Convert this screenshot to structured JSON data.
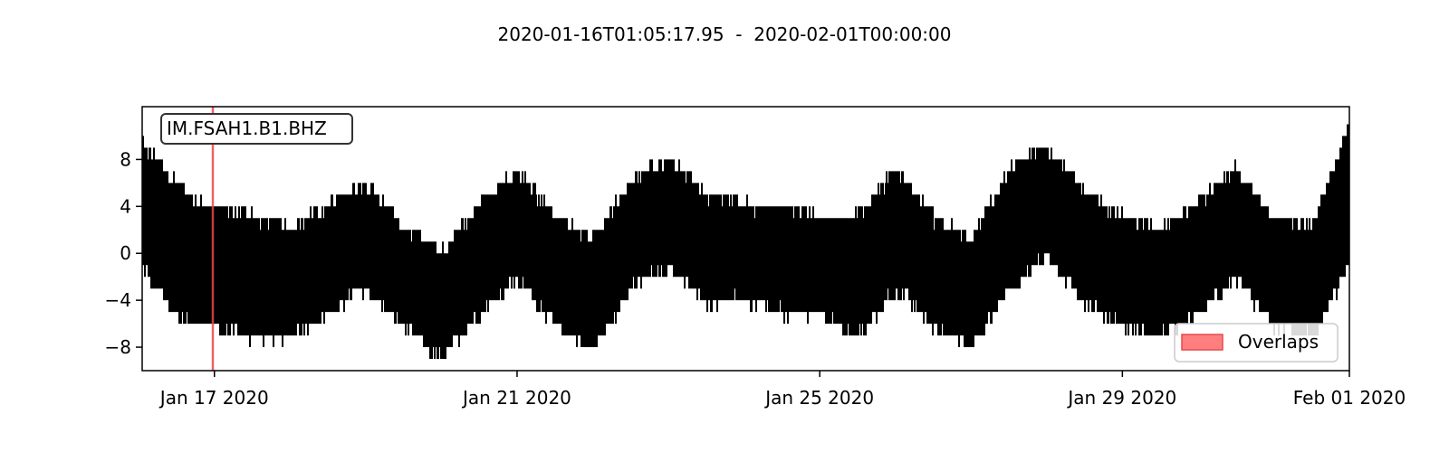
{
  "chart_data": {
    "type": "line",
    "title": "2020-01-16T01:05:17.95  -  2020-02-01T00:00:00",
    "trace_label": "IM.FSAH1.B1.BHZ",
    "start_time": "2020-01-16T01:05:17.95",
    "end_time": "2020-02-01T00:00:00",
    "xlabel": "",
    "ylabel": "",
    "ylim": [
      -10,
      12.5
    ],
    "x_ticks": [
      {
        "date": "2020-01-17",
        "label": "Jan 17 2020"
      },
      {
        "date": "2020-01-21",
        "label": "Jan 21 2020"
      },
      {
        "date": "2020-01-25",
        "label": "Jan 25 2020"
      },
      {
        "date": "2020-01-29",
        "label": "Jan 29 2020"
      },
      {
        "date": "2020-02-01",
        "label": "Feb 01 2020"
      }
    ],
    "y_ticks": [
      -8,
      -4,
      0,
      4,
      8
    ],
    "overlap_marker_time": "2020-01-16T23:30:00",
    "legend": {
      "label": "Overlaps",
      "location": "lower-right"
    },
    "grid": false,
    "series": [
      {
        "envelope": [
          {
            "time": "2020-01-16T01:05",
            "min": -1,
            "max": 9
          },
          {
            "time": "2020-01-16T06:00",
            "min": -3,
            "max": 8
          },
          {
            "time": "2020-01-16T12:00",
            "min": -5,
            "max": 6
          },
          {
            "time": "2020-01-16T18:00",
            "min": -6,
            "max": 4
          },
          {
            "time": "2020-01-17T00:00",
            "min": -6,
            "max": 4
          },
          {
            "time": "2020-01-17T12:00",
            "min": -7,
            "max": 3
          },
          {
            "time": "2020-01-18T00:00",
            "min": -7,
            "max": 2
          },
          {
            "time": "2020-01-18T12:00",
            "min": -5,
            "max": 4
          },
          {
            "time": "2020-01-19T00:00",
            "min": -3,
            "max": 6
          },
          {
            "time": "2020-01-19T12:00",
            "min": -6,
            "max": 2
          },
          {
            "time": "2020-01-20T00:00",
            "min": -9,
            "max": 0
          },
          {
            "time": "2020-01-20T12:00",
            "min": -5,
            "max": 4
          },
          {
            "time": "2020-01-21T00:00",
            "min": -2,
            "max": 7
          },
          {
            "time": "2020-01-21T12:00",
            "min": -6,
            "max": 3
          },
          {
            "time": "2020-01-22T00:00",
            "min": -8,
            "max": 1
          },
          {
            "time": "2020-01-22T12:00",
            "min": -3,
            "max": 6
          },
          {
            "time": "2020-01-23T00:00",
            "min": -1,
            "max": 8
          },
          {
            "time": "2020-01-23T12:00",
            "min": -4,
            "max": 5
          },
          {
            "time": "2020-01-24T00:00",
            "min": -4,
            "max": 4
          },
          {
            "time": "2020-01-24T12:00",
            "min": -5,
            "max": 4
          },
          {
            "time": "2020-01-25T00:00",
            "min": -5,
            "max": 3
          },
          {
            "time": "2020-01-25T12:00",
            "min": -7,
            "max": 3
          },
          {
            "time": "2020-01-26T00:00",
            "min": -3,
            "max": 7
          },
          {
            "time": "2020-01-26T12:00",
            "min": -6,
            "max": 3
          },
          {
            "time": "2020-01-27T00:00",
            "min": -8,
            "max": 1
          },
          {
            "time": "2020-01-27T12:00",
            "min": -3,
            "max": 7
          },
          {
            "time": "2020-01-28T00:00",
            "min": 0,
            "max": 9
          },
          {
            "time": "2020-01-28T12:00",
            "min": -4,
            "max": 5
          },
          {
            "time": "2020-01-29T00:00",
            "min": -6,
            "max": 3
          },
          {
            "time": "2020-01-29T12:00",
            "min": -7,
            "max": 2
          },
          {
            "time": "2020-01-30T00:00",
            "min": -5,
            "max": 4
          },
          {
            "time": "2020-01-30T12:00",
            "min": -2,
            "max": 7
          },
          {
            "time": "2020-01-31T00:00",
            "min": -6,
            "max": 3
          },
          {
            "time": "2020-01-31T12:00",
            "min": -7,
            "max": 2
          },
          {
            "time": "2020-02-01T00:00",
            "min": -1,
            "max": 11
          }
        ],
        "color": "#000000"
      }
    ]
  },
  "colors": {
    "trace": "#000000",
    "overlap_marker": "#e8484b",
    "legend_patch_fill": "#ff7f7f",
    "legend_patch_edge": "#e8484b",
    "axes": "#000000"
  }
}
